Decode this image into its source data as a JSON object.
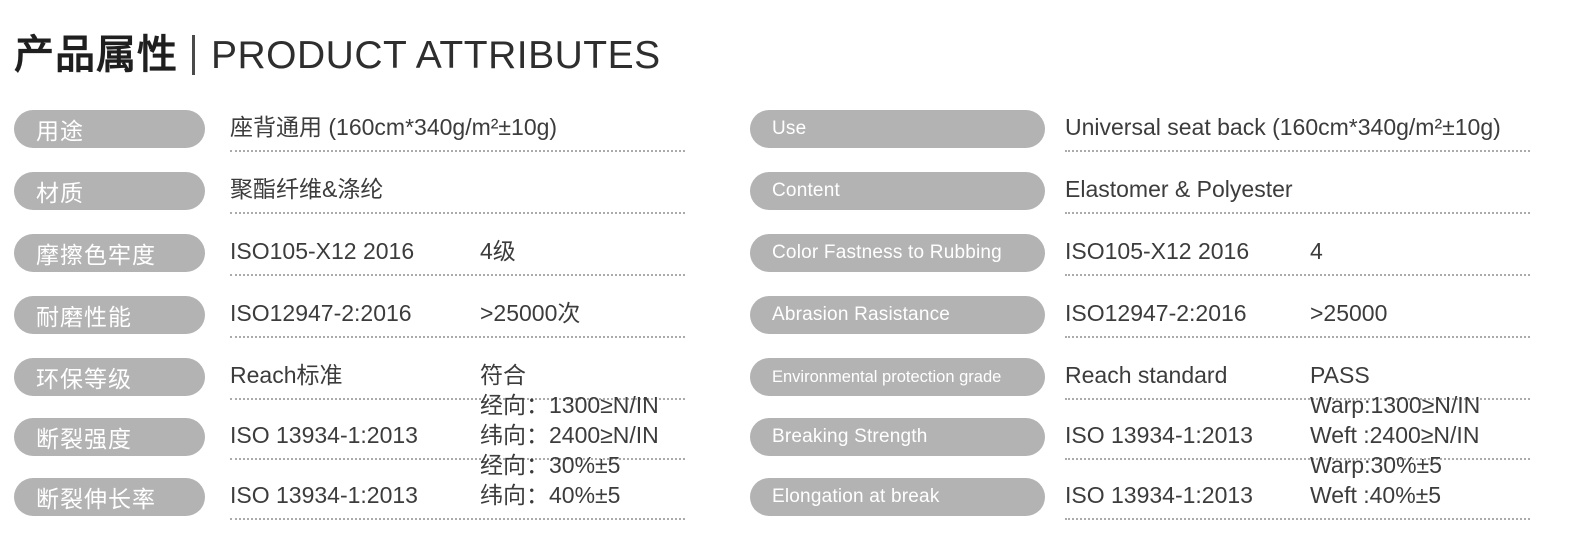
{
  "title": {
    "zh": "产品属性",
    "en": "PRODUCT ATTRIBUTES"
  },
  "colors": {
    "pill_background": "#b3b3b3",
    "pill_text": "#ffffff",
    "value_text": "#3c3c3c",
    "dotted_line": "#ababab",
    "title_text": "#1f1f1f"
  },
  "left": {
    "rows": [
      {
        "label": "用途",
        "value": "座背通用 (160cm*340g/m²±10g)"
      },
      {
        "label": "材质",
        "value": "聚酯纤维&涤纶"
      },
      {
        "label": "摩擦色牢度",
        "standard": "ISO105-X12 2016",
        "result": "4级"
      },
      {
        "label": "耐磨性能",
        "standard": "ISO12947-2:2016",
        "result": ">25000次"
      },
      {
        "label": "环保等级",
        "standard": "Reach标准",
        "result": "符合"
      },
      {
        "label": "断裂强度",
        "standard": "ISO 13934-1:2013",
        "result_line1": "经向：1300≥N/IN",
        "result_line2": "纬向：2400≥N/IN"
      },
      {
        "label": "断裂伸长率",
        "standard": "ISO 13934-1:2013",
        "result_line1": "经向：30%±5",
        "result_line2": "纬向：40%±5"
      }
    ]
  },
  "right": {
    "rows": [
      {
        "label": "Use",
        "value": "Universal seat back (160cm*340g/m²±10g)"
      },
      {
        "label": "Content",
        "value": "Elastomer & Polyester"
      },
      {
        "label": "Color Fastness to Rubbing",
        "standard": "ISO105-X12 2016",
        "result": "4"
      },
      {
        "label": "Abrasion Rasistance",
        "standard": "ISO12947-2:2016",
        "result": ">25000"
      },
      {
        "label": "Environmental protection grade",
        "standard": "Reach standard",
        "result": "PASS"
      },
      {
        "label": "Breaking Strength",
        "standard": "ISO 13934-1:2013",
        "result_line1": "Warp:1300≥N/IN",
        "result_line2": "Weft :2400≥N/IN"
      },
      {
        "label": "Elongation at break",
        "standard": "ISO 13934-1:2013",
        "result_line1": "Warp:30%±5",
        "result_line2": "Weft :40%±5"
      }
    ]
  }
}
